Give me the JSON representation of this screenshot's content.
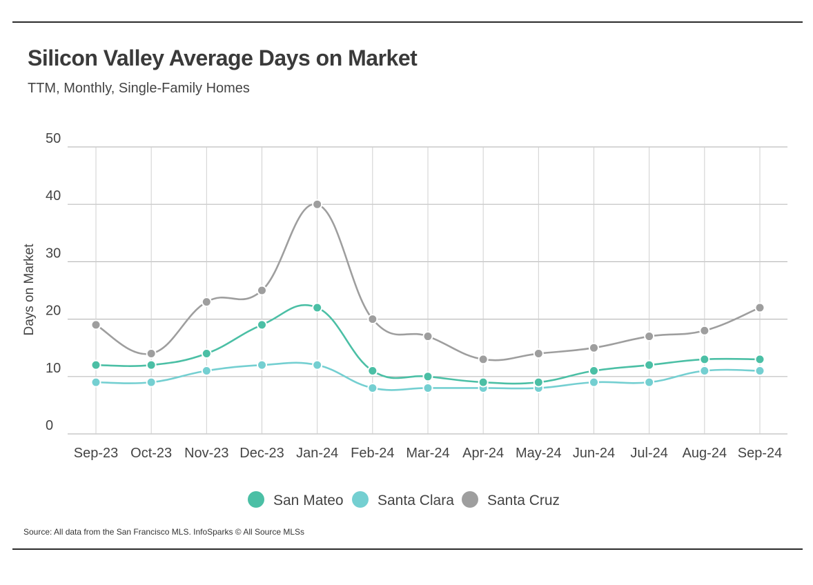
{
  "header": {
    "title": "Silicon Valley Average Days on Market",
    "subtitle": "TTM, Monthly, Single-Family Homes"
  },
  "footer": {
    "source": "Source:  All data from the San Francisco MLS. InfoSparks © All Source MLSs"
  },
  "chart_data": {
    "type": "line",
    "title": "Silicon Valley Average Days on Market",
    "subtitle": "TTM, Monthly, Single-Family Homes",
    "xlabel": "",
    "ylabel": "Days on Market",
    "ylim": [
      0,
      50
    ],
    "yticks": [
      0,
      10,
      20,
      30,
      40,
      50
    ],
    "grid": true,
    "legend_position": "bottom-center",
    "categories": [
      "Sep-23",
      "Oct-23",
      "Nov-23",
      "Dec-23",
      "Jan-24",
      "Feb-24",
      "Mar-24",
      "Apr-24",
      "May-24",
      "Jun-24",
      "Jul-24",
      "Aug-24",
      "Sep-24"
    ],
    "series": [
      {
        "name": "San Mateo",
        "color": "#4bbfa5",
        "values": [
          12,
          12,
          14,
          19,
          22,
          11,
          10,
          9,
          9,
          11,
          12,
          13,
          13
        ]
      },
      {
        "name": "Santa Clara",
        "color": "#74cfd1",
        "values": [
          9,
          9,
          11,
          12,
          12,
          8,
          8,
          8,
          8,
          9,
          9,
          11,
          11
        ]
      },
      {
        "name": "Santa Cruz",
        "color": "#9e9e9e",
        "values": [
          19,
          14,
          23,
          25,
          40,
          20,
          17,
          13,
          14,
          15,
          17,
          18,
          22
        ]
      }
    ]
  }
}
